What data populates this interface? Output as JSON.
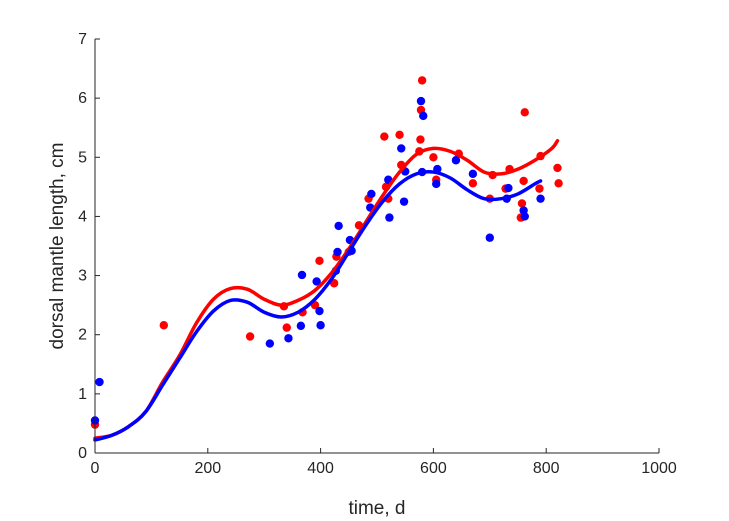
{
  "chart_data": {
    "type": "scatter",
    "title": "",
    "xlabel": "time, d",
    "ylabel": "dorsal mantle length, cm",
    "xlim": [
      0,
      1000
    ],
    "ylim": [
      0,
      7
    ],
    "xticks": [
      "0",
      "200",
      "400",
      "600",
      "800",
      "1000"
    ],
    "yticks": [
      "0",
      "1",
      "2",
      "3",
      "4",
      "5",
      "6",
      "7"
    ],
    "grid": false,
    "legend": "none",
    "series": [
      {
        "color": "#ff0000",
        "points": [
          [
            0,
            0.48
          ],
          [
            122,
            2.16
          ],
          [
            275,
            1.97
          ],
          [
            335,
            2.48
          ],
          [
            340,
            2.12
          ],
          [
            368,
            2.38
          ],
          [
            390,
            2.5
          ],
          [
            398,
            3.25
          ],
          [
            424,
            2.87
          ],
          [
            428,
            3.32
          ],
          [
            450,
            3.4
          ],
          [
            468,
            3.85
          ],
          [
            485,
            4.3
          ],
          [
            513,
            5.35
          ],
          [
            516,
            4.5
          ],
          [
            520,
            4.3
          ],
          [
            540,
            5.38
          ],
          [
            543,
            4.87
          ],
          [
            575,
            5.1
          ],
          [
            577,
            5.3
          ],
          [
            578,
            5.8
          ],
          [
            580,
            6.3
          ],
          [
            600,
            5.0
          ],
          [
            605,
            4.62
          ],
          [
            645,
            5.06
          ],
          [
            670,
            4.56
          ],
          [
            700,
            4.3
          ],
          [
            705,
            4.7
          ],
          [
            728,
            4.47
          ],
          [
            735,
            4.8
          ],
          [
            755,
            3.98
          ],
          [
            757,
            4.22
          ],
          [
            760,
            4.6
          ],
          [
            762,
            5.76
          ],
          [
            788,
            4.47
          ],
          [
            790,
            5.02
          ],
          [
            820,
            4.82
          ],
          [
            822,
            4.56
          ]
        ],
        "fit": [
          [
            0,
            0.25
          ],
          [
            30,
            0.3
          ],
          [
            60,
            0.45
          ],
          [
            90,
            0.7
          ],
          [
            120,
            1.2
          ],
          [
            150,
            1.65
          ],
          [
            180,
            2.2
          ],
          [
            210,
            2.6
          ],
          [
            240,
            2.78
          ],
          [
            270,
            2.77
          ],
          [
            300,
            2.6
          ],
          [
            330,
            2.5
          ],
          [
            360,
            2.58
          ],
          [
            390,
            2.75
          ],
          [
            420,
            3.05
          ],
          [
            450,
            3.45
          ],
          [
            480,
            3.9
          ],
          [
            510,
            4.35
          ],
          [
            540,
            4.75
          ],
          [
            570,
            5.05
          ],
          [
            600,
            5.15
          ],
          [
            630,
            5.1
          ],
          [
            660,
            4.95
          ],
          [
            690,
            4.75
          ],
          [
            720,
            4.72
          ],
          [
            750,
            4.8
          ],
          [
            780,
            4.95
          ],
          [
            810,
            5.15
          ],
          [
            820,
            5.28
          ]
        ]
      },
      {
        "color": "#0000ff",
        "points": [
          [
            0,
            0.55
          ],
          [
            8,
            1.2
          ],
          [
            310,
            1.85
          ],
          [
            343,
            1.94
          ],
          [
            365,
            2.15
          ],
          [
            367,
            3.01
          ],
          [
            393,
            2.9
          ],
          [
            398,
            2.4
          ],
          [
            400,
            2.16
          ],
          [
            427,
            3.08
          ],
          [
            430,
            3.4
          ],
          [
            432,
            3.84
          ],
          [
            452,
            3.6
          ],
          [
            455,
            3.42
          ],
          [
            488,
            4.15
          ],
          [
            490,
            4.38
          ],
          [
            520,
            4.62
          ],
          [
            522,
            3.98
          ],
          [
            543,
            5.15
          ],
          [
            548,
            4.25
          ],
          [
            550,
            4.76
          ],
          [
            578,
            5.95
          ],
          [
            580,
            4.75
          ],
          [
            582,
            5.7
          ],
          [
            605,
            4.55
          ],
          [
            607,
            4.8
          ],
          [
            640,
            4.95
          ],
          [
            670,
            4.72
          ],
          [
            700,
            3.64
          ],
          [
            730,
            4.3
          ],
          [
            733,
            4.48
          ],
          [
            760,
            4.1
          ],
          [
            762,
            4.0
          ],
          [
            790,
            4.3
          ]
        ],
        "fit": [
          [
            0,
            0.22
          ],
          [
            30,
            0.3
          ],
          [
            60,
            0.45
          ],
          [
            90,
            0.7
          ],
          [
            120,
            1.15
          ],
          [
            150,
            1.6
          ],
          [
            180,
            2.05
          ],
          [
            210,
            2.4
          ],
          [
            240,
            2.58
          ],
          [
            270,
            2.55
          ],
          [
            300,
            2.38
          ],
          [
            330,
            2.3
          ],
          [
            360,
            2.38
          ],
          [
            390,
            2.6
          ],
          [
            420,
            2.95
          ],
          [
            450,
            3.4
          ],
          [
            480,
            3.85
          ],
          [
            510,
            4.25
          ],
          [
            540,
            4.55
          ],
          [
            570,
            4.72
          ],
          [
            600,
            4.75
          ],
          [
            630,
            4.65
          ],
          [
            660,
            4.45
          ],
          [
            690,
            4.3
          ],
          [
            720,
            4.3
          ],
          [
            750,
            4.38
          ],
          [
            780,
            4.55
          ],
          [
            790,
            4.6
          ]
        ]
      }
    ]
  }
}
